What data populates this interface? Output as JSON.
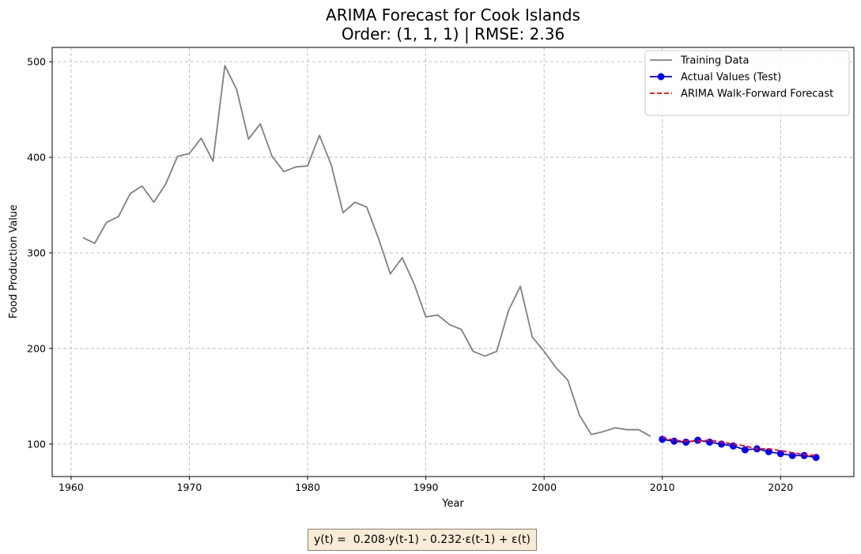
{
  "chart_data": {
    "type": "line",
    "title": "ARIMA Forecast for Cook Islands",
    "subtitle": "Order: (1, 1, 1) | RMSE: 2.36",
    "xlabel": "Year",
    "ylabel": "Food Production Value",
    "xlim": [
      1958.4,
      2026.2
    ],
    "ylim": [
      66,
      515
    ],
    "x_ticks": [
      "1960",
      "1970",
      "1980",
      "1990",
      "2000",
      "2010",
      "2020"
    ],
    "y_ticks": [
      "100",
      "200",
      "300",
      "400",
      "500"
    ],
    "x_tick_values": [
      1960,
      1970,
      1980,
      1990,
      2000,
      2010,
      2020
    ],
    "y_tick_values": [
      100,
      200,
      300,
      400,
      500
    ],
    "grid": true,
    "legend_position": "top-right",
    "series": [
      {
        "name": "Training Data",
        "color": "#808080",
        "style": "solid",
        "x": [
          1961,
          1962,
          1963,
          1964,
          1965,
          1966,
          1967,
          1968,
          1969,
          1970,
          1971,
          1972,
          1973,
          1974,
          1975,
          1976,
          1977,
          1978,
          1979,
          1980,
          1981,
          1982,
          1983,
          1984,
          1985,
          1986,
          1987,
          1988,
          1989,
          1990,
          1991,
          1992,
          1993,
          1994,
          1995,
          1996,
          1997,
          1998,
          1999,
          2000,
          2001,
          2002,
          2003,
          2004,
          2005,
          2006,
          2007,
          2008,
          2009
        ],
        "y": [
          316,
          310,
          332,
          338,
          362,
          370,
          353,
          372,
          401,
          404,
          420,
          396,
          496,
          471,
          419,
          435,
          401,
          385,
          390,
          391,
          423,
          392,
          342,
          353,
          348,
          315,
          278,
          295,
          268,
          233,
          235,
          225,
          220,
          197,
          192,
          197,
          240,
          265,
          212,
          197,
          180,
          167,
          130,
          110,
          113,
          117,
          115,
          115,
          108
        ]
      },
      {
        "name": "Actual Values (Test)",
        "color": "#0000ff",
        "style": "solid-marker",
        "x": [
          2010,
          2011,
          2012,
          2013,
          2014,
          2015,
          2016,
          2017,
          2018,
          2019,
          2020,
          2021,
          2022,
          2023
        ],
        "y": [
          105,
          103,
          102,
          104,
          102,
          100,
          98,
          94,
          95,
          92,
          90,
          88,
          88,
          86
        ]
      },
      {
        "name": "ARIMA Walk-Forward Forecast",
        "color": "#ff0000",
        "style": "dashed",
        "x": [
          2010,
          2011,
          2012,
          2013,
          2014,
          2015,
          2016,
          2017,
          2018,
          2019,
          2020,
          2021,
          2022,
          2023
        ],
        "y": [
          107,
          104,
          103,
          103,
          104,
          102,
          100,
          98,
          95,
          95,
          93,
          91,
          89,
          88
        ]
      }
    ]
  },
  "formula": "y(t) =  0.208·y(t-1) - 0.232·ε(t-1) + ε(t)"
}
